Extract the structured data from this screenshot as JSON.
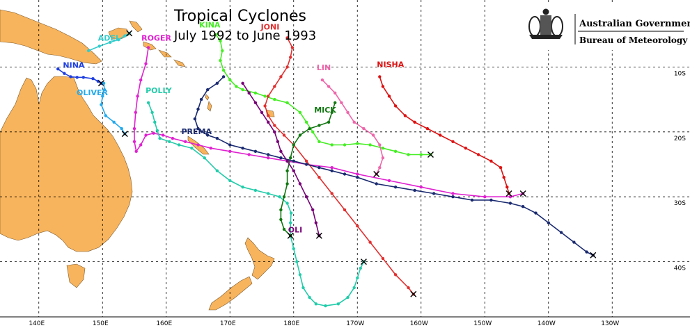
{
  "title": {
    "line1": "Tropical Cyclones",
    "line2": "July 1992 to June 1993"
  },
  "agency": {
    "government": "Australian Government",
    "bureau": "Bureau of Meteorology"
  },
  "colors": {
    "land": "#f8b45c",
    "grid": "#000000"
  },
  "lon_ticks": [
    {
      "label": "140E"
    },
    {
      "label": "150E"
    },
    {
      "label": "160E"
    },
    {
      "label": "170E"
    },
    {
      "label": "180E"
    },
    {
      "label": "170W"
    },
    {
      "label": "160W"
    },
    {
      "label": "150W"
    },
    {
      "label": "140W"
    },
    {
      "label": "130W"
    }
  ],
  "lat_ticks": [
    {
      "label": "10S"
    },
    {
      "label": "20S"
    },
    {
      "label": "30S"
    },
    {
      "label": "40S"
    }
  ],
  "cyclones": [
    {
      "name": "ADEL",
      "color": "#33cccc",
      "track": [
        [
          147.8,
          -7.5
        ],
        [
          149.5,
          -6.8
        ],
        [
          151.2,
          -6.2
        ],
        [
          152.5,
          -5.8
        ],
        [
          153.5,
          -5.2
        ],
        [
          154.2,
          -4.8
        ]
      ]
    },
    {
      "name": "NINA",
      "color": "#1f3fe0",
      "track": [
        [
          143,
          -10.3
        ],
        [
          144,
          -11.0
        ],
        [
          145,
          -11.5
        ],
        [
          146,
          -11.6
        ],
        [
          147,
          -11.6
        ],
        [
          148.5,
          -11.8
        ],
        [
          149.3,
          -12.2
        ],
        [
          149.8,
          -12.5
        ]
      ]
    },
    {
      "name": "ROGER",
      "color": "#e020d0",
      "track": [
        [
          157.2,
          -7.0
        ],
        [
          156.8,
          -9.5
        ],
        [
          156.0,
          -12.0
        ],
        [
          155.5,
          -14.5
        ],
        [
          155.2,
          -17.0
        ],
        [
          155.0,
          -19.5
        ],
        [
          155.0,
          -21.5
        ],
        [
          155.3,
          -23.0
        ],
        [
          156.0,
          -22.0
        ],
        [
          156.8,
          -20.5
        ],
        [
          158.0,
          -20.2
        ],
        [
          159.5,
          -20.5
        ],
        [
          161.0,
          -21.0
        ],
        [
          163.0,
          -21.5
        ],
        [
          165.0,
          -22.0
        ],
        [
          167.0,
          -22.5
        ],
        [
          170.0,
          -23.0
        ],
        [
          173.0,
          -23.5
        ],
        [
          176.0,
          -24.0
        ],
        [
          179.0,
          -24.5
        ],
        [
          182.0,
          -25.0
        ],
        [
          186.0,
          -25.5
        ],
        [
          190.0,
          -26.5
        ],
        [
          195.0,
          -27.5
        ],
        [
          200.0,
          -28.5
        ],
        [
          205.0,
          -29.5
        ],
        [
          210.0,
          -30.0
        ],
        [
          214.0,
          -30.0
        ],
        [
          216.0,
          -29.5
        ]
      ]
    },
    {
      "name": "OLIVER",
      "color": "#22aaee",
      "track": [
        [
          150.2,
          -12.5
        ],
        [
          150.3,
          -13.5
        ],
        [
          150.0,
          -14.5
        ],
        [
          149.8,
          -15.8
        ],
        [
          150.5,
          -17.5
        ],
        [
          151.8,
          -18.5
        ],
        [
          153.0,
          -19.5
        ],
        [
          153.5,
          -20.3
        ]
      ]
    },
    {
      "name": "POLLY",
      "color": "#22ccaa",
      "track": [
        [
          157.2,
          -15.5
        ],
        [
          157.8,
          -17.0
        ],
        [
          158.2,
          -18.5
        ],
        [
          158.6,
          -19.8
        ],
        [
          159.0,
          -21.0
        ],
        [
          160.5,
          -21.5
        ],
        [
          162.0,
          -22.0
        ],
        [
          164.0,
          -22.5
        ],
        [
          166.0,
          -24.0
        ],
        [
          168.0,
          -26.0
        ],
        [
          170.0,
          -27.5
        ],
        [
          172.0,
          -28.5
        ],
        [
          174.0,
          -29.0
        ],
        [
          176.0,
          -29.5
        ],
        [
          177.8,
          -30.0
        ],
        [
          179.0,
          -31.0
        ],
        [
          179.6,
          -32.5
        ],
        [
          179.5,
          -34.0
        ],
        [
          179.5,
          -36.0
        ],
        [
          180.0,
          -38.0
        ],
        [
          180.5,
          -40.0
        ],
        [
          181.0,
          -42.0
        ],
        [
          181.5,
          -44.0
        ],
        [
          182.5,
          -45.5
        ],
        [
          183.5,
          -46.5
        ],
        [
          185.0,
          -46.8
        ],
        [
          187.0,
          -46.5
        ],
        [
          188.5,
          -45.5
        ],
        [
          189.5,
          -44.0
        ],
        [
          190.0,
          -42.5
        ],
        [
          190.5,
          -41.0
        ],
        [
          191.0,
          -40.0
        ]
      ]
    },
    {
      "name": "KINA",
      "color": "#44ee22",
      "track": [
        [
          167.8,
          -5.0
        ],
        [
          168.5,
          -6.0
        ],
        [
          168.8,
          -7.5
        ],
        [
          168.5,
          -9.0
        ],
        [
          169.0,
          -10.5
        ],
        [
          170.0,
          -12.0
        ],
        [
          171.0,
          -13.0
        ],
        [
          172.0,
          -13.5
        ],
        [
          174.0,
          -14.0
        ],
        [
          175.5,
          -14.5
        ],
        [
          177.0,
          -15.0
        ],
        [
          179.0,
          -15.5
        ],
        [
          181.0,
          -17.0
        ],
        [
          182.0,
          -18.5
        ],
        [
          183.0,
          -20.0
        ],
        [
          184.0,
          -21.5
        ],
        [
          186.0,
          -22.0
        ],
        [
          188.0,
          -22.0
        ],
        [
          190.0,
          -21.8
        ],
        [
          192.0,
          -22.0
        ],
        [
          194.0,
          -22.5
        ],
        [
          196.0,
          -23.0
        ],
        [
          198.0,
          -23.5
        ],
        [
          200.0,
          -23.5
        ],
        [
          201.5,
          -23.5
        ]
      ]
    },
    {
      "name": "JONI",
      "color": "#e03030",
      "track": [
        [
          179.0,
          -5.5
        ],
        [
          179.8,
          -7.0
        ],
        [
          179.5,
          -8.5
        ],
        [
          179.0,
          -10.0
        ],
        [
          178.0,
          -11.5
        ],
        [
          177.0,
          -13.0
        ],
        [
          176.0,
          -14.5
        ],
        [
          175.5,
          -16.0
        ],
        [
          176.0,
          -17.5
        ],
        [
          177.0,
          -19.0
        ],
        [
          178.5,
          -20.5
        ],
        [
          180.0,
          -22.0
        ],
        [
          182.0,
          -24.5
        ],
        [
          184.0,
          -27.0
        ],
        [
          186.0,
          -29.5
        ],
        [
          188.0,
          -32.0
        ],
        [
          190.0,
          -34.5
        ],
        [
          192.0,
          -37.0
        ],
        [
          194.0,
          -39.5
        ],
        [
          196.0,
          -42.0
        ],
        [
          198.0,
          -44.0
        ],
        [
          198.8,
          -45.0
        ]
      ]
    },
    {
      "name": "LIN",
      "color": "#ee66aa",
      "track": [
        [
          184.5,
          -12.0
        ],
        [
          185.5,
          -13.0
        ],
        [
          186.5,
          -14.0
        ],
        [
          187.5,
          -15.5
        ],
        [
          188.5,
          -17.0
        ],
        [
          189.5,
          -18.5
        ],
        [
          191.0,
          -19.5
        ],
        [
          192.5,
          -20.5
        ],
        [
          193.5,
          -22.0
        ],
        [
          194.0,
          -24.0
        ],
        [
          193.5,
          -25.5
        ],
        [
          193.0,
          -26.5
        ]
      ]
    },
    {
      "name": "NISHA",
      "color": "#dd1111",
      "track": [
        [
          193.5,
          -11.5
        ],
        [
          194.0,
          -13.0
        ],
        [
          195.0,
          -14.5
        ],
        [
          196.0,
          -16.0
        ],
        [
          197.5,
          -17.5
        ],
        [
          199.0,
          -18.5
        ],
        [
          201.0,
          -19.5
        ],
        [
          203.0,
          -20.5
        ],
        [
          205.0,
          -21.5
        ],
        [
          207.0,
          -22.5
        ],
        [
          209.0,
          -23.5
        ],
        [
          211.0,
          -24.5
        ],
        [
          212.5,
          -25.5
        ],
        [
          213.0,
          -27.0
        ],
        [
          213.5,
          -28.5
        ],
        [
          213.8,
          -29.5
        ]
      ]
    },
    {
      "name": "MICK",
      "color": "#117711",
      "track": [
        [
          186.5,
          -15.5
        ],
        [
          186.0,
          -17.0
        ],
        [
          185.5,
          -18.5
        ],
        [
          184.0,
          -19.0
        ],
        [
          182.5,
          -19.5
        ],
        [
          181.0,
          -20.5
        ],
        [
          180.0,
          -22.0
        ],
        [
          179.5,
          -24.0
        ],
        [
          179.0,
          -26.0
        ],
        [
          179.0,
          -28.0
        ],
        [
          178.5,
          -30.0
        ],
        [
          178.0,
          -32.0
        ],
        [
          178.0,
          -33.5
        ],
        [
          178.5,
          -35.0
        ],
        [
          179.5,
          -36.0
        ]
      ]
    },
    {
      "name": "PREMA",
      "color": "#1a2a70",
      "track": [
        [
          169.0,
          -11.5
        ],
        [
          168.0,
          -12.5
        ],
        [
          166.5,
          -13.5
        ],
        [
          165.5,
          -15.0
        ],
        [
          165.0,
          -16.5
        ],
        [
          164.5,
          -18.0
        ],
        [
          165.0,
          -19.5
        ],
        [
          166.5,
          -20.5
        ],
        [
          168.0,
          -21.0
        ],
        [
          170.0,
          -22.0
        ],
        [
          172.0,
          -22.5
        ],
        [
          174.0,
          -23.0
        ],
        [
          176.0,
          -23.5
        ],
        [
          178.0,
          -24.0
        ],
        [
          180.0,
          -24.5
        ],
        [
          182.0,
          -25.0
        ],
        [
          184.0,
          -25.5
        ],
        [
          186.0,
          -26.0
        ],
        [
          188.0,
          -26.5
        ],
        [
          190.0,
          -27.0
        ],
        [
          193.0,
          -28.0
        ],
        [
          196.0,
          -28.5
        ],
        [
          199.0,
          -29.0
        ],
        [
          202.0,
          -29.5
        ],
        [
          205.0,
          -30.0
        ],
        [
          208.0,
          -30.5
        ],
        [
          211.0,
          -30.5
        ],
        [
          214.0,
          -31.0
        ],
        [
          216.0,
          -31.5
        ],
        [
          218.0,
          -32.5
        ],
        [
          220.0,
          -34.0
        ],
        [
          222.0,
          -35.5
        ],
        [
          224.0,
          -37.0
        ],
        [
          226.0,
          -38.5
        ],
        [
          227.0,
          -39.0
        ]
      ]
    },
    {
      "name": "OLI",
      "color": "#770077",
      "track": [
        [
          172.0,
          -12.5
        ],
        [
          173.0,
          -14.0
        ],
        [
          174.0,
          -15.5
        ],
        [
          175.0,
          -17.0
        ],
        [
          176.0,
          -18.5
        ],
        [
          177.0,
          -20.0
        ],
        [
          177.5,
          -21.5
        ],
        [
          178.0,
          -23.0
        ],
        [
          179.0,
          -24.5
        ],
        [
          180.0,
          -26.0
        ],
        [
          181.0,
          -28.0
        ],
        [
          182.0,
          -30.0
        ],
        [
          183.0,
          -32.0
        ],
        [
          183.5,
          -34.0
        ],
        [
          184.0,
          -36.0
        ]
      ]
    }
  ]
}
